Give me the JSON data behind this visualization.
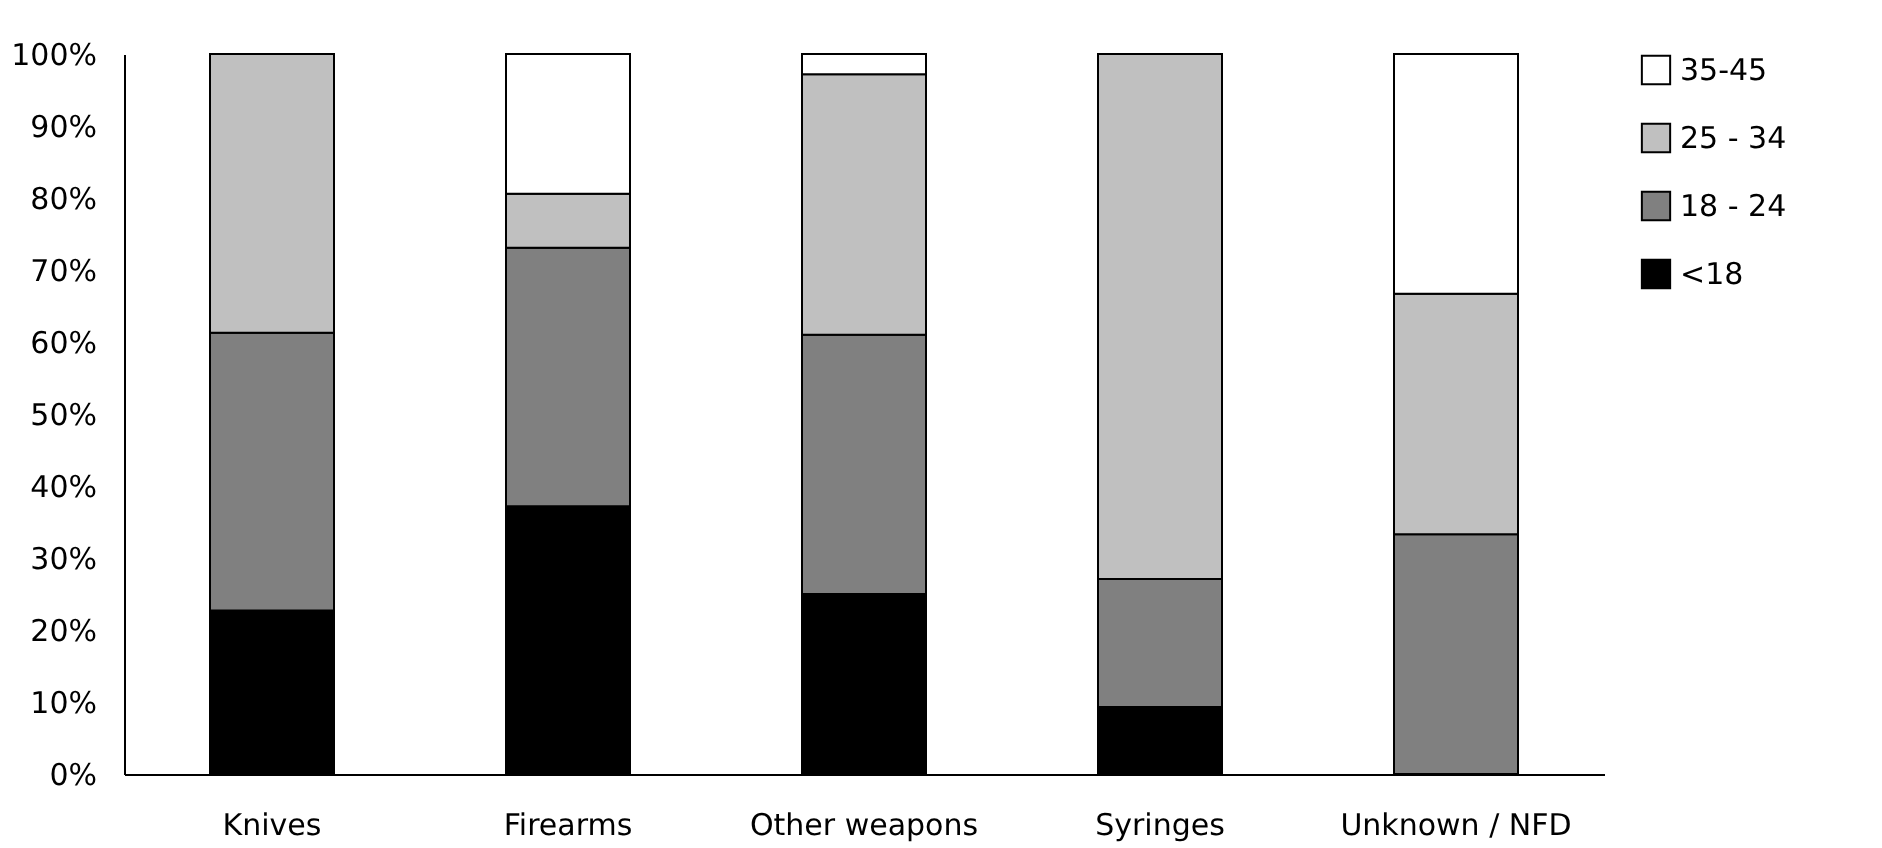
{
  "chart_data": {
    "type": "bar",
    "stacked": true,
    "categories": [
      "Knives",
      "Firearms",
      "Other weapons",
      "Syringes",
      "Unknown / NFD"
    ],
    "series": [
      {
        "name": "<18",
        "color": "#000000",
        "values": [
          22.7,
          37.2,
          25,
          9.3,
          0
        ]
      },
      {
        "name": "18 - 24",
        "color": "#808080",
        "values": [
          38.6,
          35.9,
          36,
          17.8,
          33.3
        ]
      },
      {
        "name": "25 - 34",
        "color": "#c0c0c0",
        "values": [
          38.7,
          7.5,
          36.2,
          72.9,
          33.4
        ]
      },
      {
        "name": "35-45",
        "color": "#ffffff",
        "values": [
          0,
          19.4,
          2.8,
          0,
          33.3
        ]
      }
    ],
    "ylim": [
      0,
      100
    ],
    "yticks": [
      {
        "value": 0,
        "label": "0%"
      },
      {
        "value": 10,
        "label": "10%"
      },
      {
        "value": 20,
        "label": "20%"
      },
      {
        "value": 30,
        "label": "30%"
      },
      {
        "value": 40,
        "label": "40%"
      },
      {
        "value": 50,
        "label": "50%"
      },
      {
        "value": 60,
        "label": "60%"
      },
      {
        "value": 70,
        "label": "70%"
      },
      {
        "value": 80,
        "label": "80%"
      },
      {
        "value": 90,
        "label": "90%"
      },
      {
        "value": 100,
        "label": "100%"
      }
    ],
    "grid": false,
    "legend": "right"
  }
}
